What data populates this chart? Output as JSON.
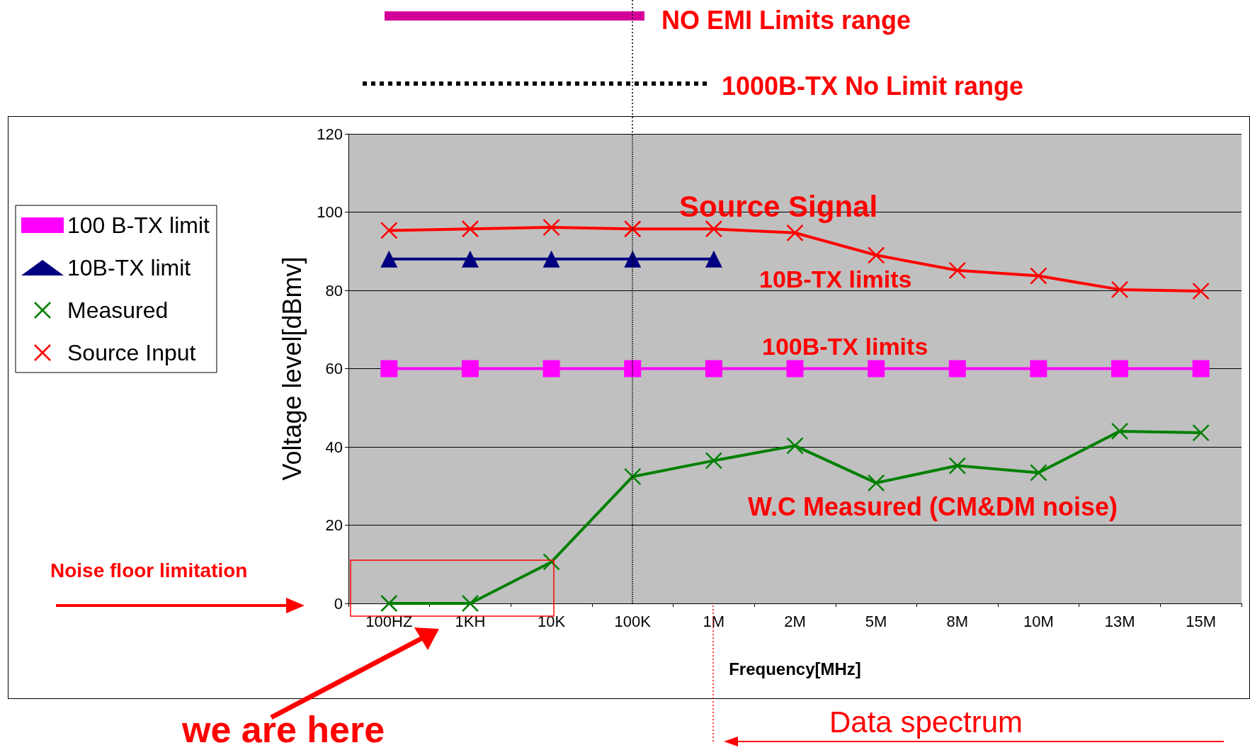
{
  "chart_data": {
    "type": "line",
    "ylabel": "Voltage level[dBmv]",
    "xlabel": "Frequency[MHz]",
    "categories": [
      "100HZ",
      "1KH",
      "10K",
      "100K",
      "1M",
      "2M",
      "5M",
      "8M",
      "10M",
      "13M",
      "15M"
    ],
    "ylim": [
      0,
      120
    ],
    "yticks": [
      0,
      20,
      40,
      60,
      80,
      100,
      120
    ],
    "grid": "y",
    "legend": "left",
    "series": [
      {
        "name": "100 B-TX limit",
        "color": "#ff00ff",
        "marker": "square",
        "values": [
          60,
          60,
          60,
          60,
          60,
          60,
          60,
          60,
          60,
          60,
          60
        ]
      },
      {
        "name": "10B-TX limit",
        "color": "#000080",
        "marker": "triangle",
        "values": [
          88,
          88,
          88,
          88,
          88,
          null,
          null,
          null,
          null,
          null,
          null
        ]
      },
      {
        "name": "Measured",
        "color": "#008000",
        "marker": "cross",
        "values": [
          0,
          0,
          10.6,
          32.4,
          36.5,
          40.3,
          30.8,
          35.2,
          33.4,
          44,
          43.6
        ]
      },
      {
        "name": "Source Input",
        "color": "#ff0000",
        "marker": "cross",
        "values": [
          95.3,
          95.7,
          96.1,
          95.7,
          95.7,
          94.7,
          89,
          85.1,
          83.7,
          80.2,
          79.8
        ]
      }
    ],
    "ref_lines": [
      {
        "axis": "x",
        "value": "100K",
        "color": "#000000",
        "line_style": "dotted"
      }
    ],
    "annotations": [
      "NO EMI Limits range",
      "1000B-TX No Limit range",
      "Source Signal",
      "10B-TX limits",
      "100B-TX limits",
      "W.C Measured (CM&DM noise)",
      "Noise floor limitation",
      "we are here",
      "Data spectrum"
    ]
  }
}
